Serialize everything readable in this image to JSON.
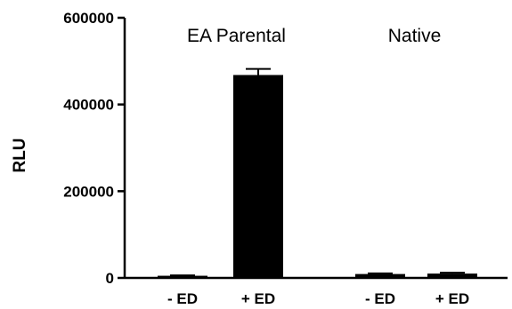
{
  "chart_data": {
    "type": "bar",
    "ylabel": "RLU",
    "xlabel": "",
    "ylim": [
      0,
      600000
    ],
    "yticks": [
      0,
      200000,
      400000,
      600000
    ],
    "ytick_labels": [
      "0",
      "200000",
      "400000",
      "600000"
    ],
    "groups": [
      {
        "name": "EA Parental",
        "categories": [
          "- ED",
          "+ ED"
        ],
        "values": [
          5000,
          468000
        ],
        "errors": [
          1000,
          14000
        ]
      },
      {
        "name": "Native",
        "categories": [
          "- ED",
          "+ ED"
        ],
        "values": [
          9000,
          10000
        ],
        "errors": [
          1500,
          2000
        ]
      }
    ],
    "bar_color": "#000000",
    "grid": false,
    "legend": "none"
  }
}
